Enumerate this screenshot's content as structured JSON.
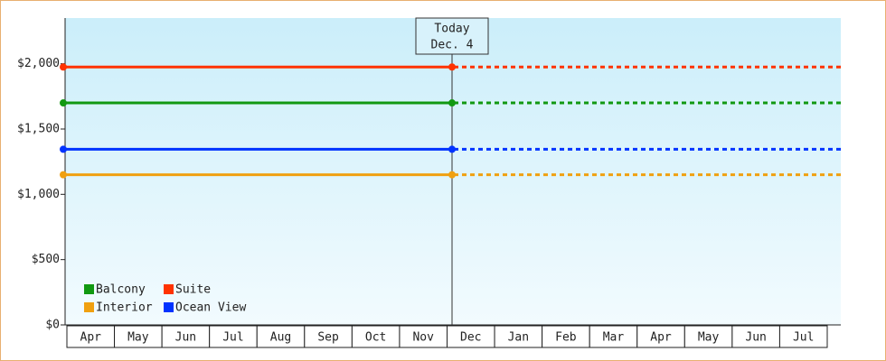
{
  "chart_data": {
    "type": "line",
    "categories": [
      "Apr",
      "May",
      "Jun",
      "Jul",
      "Aug",
      "Sep",
      "Oct",
      "Nov",
      "Dec",
      "Jan",
      "Feb",
      "Mar",
      "Apr",
      "May",
      "Jun",
      "Jul"
    ],
    "series": [
      {
        "name": "Balcony",
        "color": "#119911",
        "values": [
          1700,
          1700,
          1700,
          1700,
          1700,
          1700,
          1700,
          1700,
          1700,
          1700,
          1700,
          1700,
          1700,
          1700,
          1700,
          1700
        ]
      },
      {
        "name": "Suite",
        "color": "#ff3300",
        "values": [
          1975,
          1975,
          1975,
          1975,
          1975,
          1975,
          1975,
          1975,
          1975,
          1975,
          1975,
          1975,
          1975,
          1975,
          1975,
          1975
        ]
      },
      {
        "name": "Interior",
        "color": "#f0a010",
        "values": [
          1150,
          1150,
          1150,
          1150,
          1150,
          1150,
          1150,
          1150,
          1150,
          1150,
          1150,
          1150,
          1150,
          1150,
          1150,
          1150
        ]
      },
      {
        "name": "Ocean View",
        "color": "#0033ff",
        "values": [
          1345,
          1345,
          1345,
          1345,
          1345,
          1345,
          1345,
          1345,
          1345,
          1345,
          1345,
          1345,
          1345,
          1345,
          1345,
          1345
        ]
      }
    ],
    "ylim": [
      0,
      2350
    ],
    "yticks": [
      {
        "value": 0,
        "label": "$0"
      },
      {
        "value": 500,
        "label": "$500"
      },
      {
        "value": 1000,
        "label": "$1,000"
      },
      {
        "value": 1500,
        "label": "$1,500"
      },
      {
        "value": 2000,
        "label": "$2,000"
      }
    ],
    "annotation": {
      "lines": [
        "Today",
        "Dec. 4"
      ]
    },
    "legend": "lower left"
  }
}
